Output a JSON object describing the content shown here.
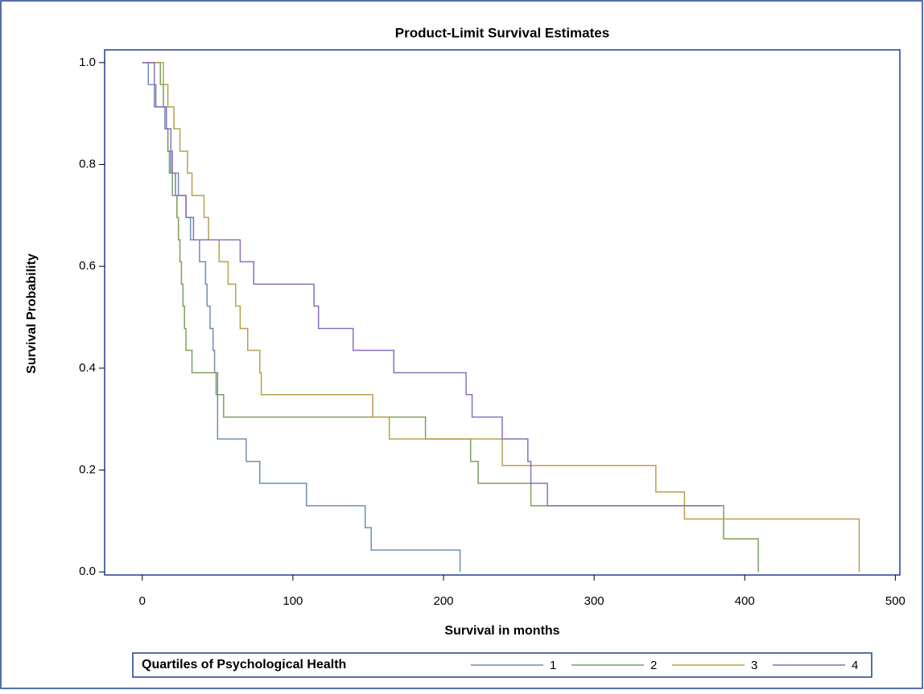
{
  "chart_data": {
    "type": "step",
    "title": "Product-Limit Survival Estimates",
    "x_label": "Survival in months",
    "y_label": "Survival Probability",
    "legend_title": "Quartiles of Psychological Health",
    "legend": "bottom",
    "xlim": [
      -25,
      503
    ],
    "ylim": [
      -0.006,
      1.025
    ],
    "xticks": [
      0,
      100,
      200,
      300,
      400,
      500
    ],
    "yticks": [
      {
        "value": 0,
        "label": "0.0"
      },
      0.2,
      0.4,
      0.6,
      0.8,
      {
        "value": 1,
        "label": "1.0"
      }
    ],
    "series": [
      {
        "name": "1",
        "color": "#6f8fb5",
        "x": [
          0,
          4,
          8,
          15,
          17,
          19,
          24,
          29,
          32,
          38,
          42,
          43,
          45,
          47,
          48,
          50,
          69,
          78,
          109,
          148,
          152,
          211
        ],
        "values": [
          1.0,
          0.957,
          0.913,
          0.87,
          0.826,
          0.783,
          0.739,
          0.696,
          0.652,
          0.609,
          0.565,
          0.522,
          0.478,
          0.435,
          0.391,
          0.261,
          0.217,
          0.174,
          0.13,
          0.087,
          0.043,
          0.0
        ]
      },
      {
        "name": "2",
        "color": "#7ba05b",
        "x": [
          0,
          12,
          14,
          16,
          17,
          18,
          20,
          23,
          24,
          25,
          26,
          27,
          28,
          29,
          33,
          49,
          54,
          188,
          218,
          223,
          258,
          386,
          409
        ],
        "values": [
          1.0,
          0.957,
          0.913,
          0.87,
          0.826,
          0.783,
          0.739,
          0.696,
          0.652,
          0.609,
          0.565,
          0.522,
          0.478,
          0.435,
          0.391,
          0.348,
          0.304,
          0.261,
          0.217,
          0.174,
          0.13,
          0.065,
          0.0
        ]
      },
      {
        "name": "3",
        "color": "#b8a04c",
        "x": [
          0,
          14,
          17,
          21,
          25,
          30,
          33,
          41,
          44,
          51,
          57,
          62,
          65,
          70,
          78,
          79,
          153,
          164,
          239,
          341,
          360,
          476
        ],
        "values": [
          1.0,
          0.957,
          0.913,
          0.87,
          0.826,
          0.783,
          0.739,
          0.696,
          0.652,
          0.609,
          0.565,
          0.522,
          0.478,
          0.435,
          0.391,
          0.348,
          0.304,
          0.261,
          0.209,
          0.157,
          0.104,
          0.0
        ]
      },
      {
        "name": "4",
        "color": "#8c6fbf",
        "x": [
          0,
          8,
          9,
          16,
          19,
          20,
          22,
          29,
          34,
          65,
          74,
          114,
          117,
          140,
          167,
          215,
          219,
          239,
          256,
          258,
          269,
          384
        ],
        "values": [
          1.0,
          0.957,
          0.913,
          0.87,
          0.826,
          0.783,
          0.739,
          0.696,
          0.652,
          0.609,
          0.565,
          0.522,
          0.478,
          0.435,
          0.391,
          0.348,
          0.304,
          0.261,
          0.217,
          0.174,
          0.13,
          0.13
        ]
      }
    ]
  }
}
